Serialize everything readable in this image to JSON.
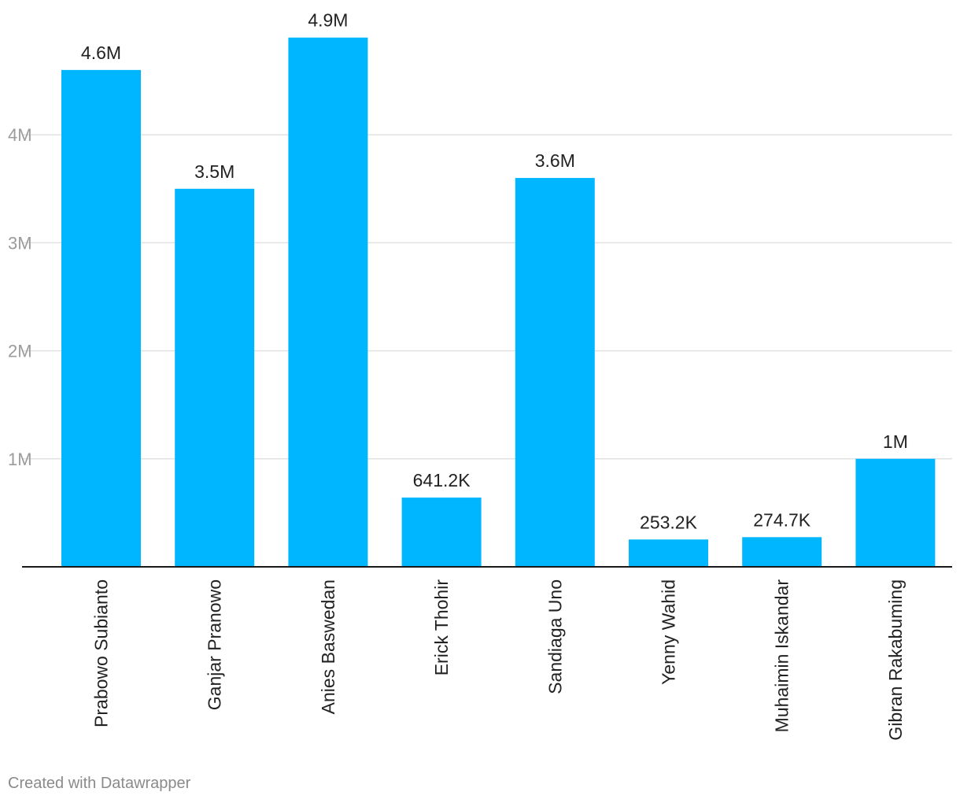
{
  "footer": {
    "credit": "Created with Datawrapper"
  },
  "colors": {
    "bar": "#00b7ff",
    "gridline": "#e2e2e2",
    "baseline": "#1a1a1a",
    "tick_label": "#9b9b9b",
    "value_label": "#222222",
    "category_label": "#222222"
  },
  "chart_data": {
    "type": "bar",
    "categories": [
      "Prabowo Subianto",
      "Ganjar Pranowo",
      "Anies Baswedan",
      "Erick Thohir",
      "Sandiaga Uno",
      "Yenny Wahid",
      "Muhaimin Iskandar",
      "Gibran Rakabuming"
    ],
    "values": [
      4600000,
      3500000,
      4900000,
      641200,
      3600000,
      253200,
      274700,
      1000000
    ],
    "value_labels": [
      "4.6M",
      "3.5M",
      "4.9M",
      "641.2K",
      "3.6M",
      "253.2K",
      "274.7K",
      "1M"
    ],
    "y_ticks": [
      1000000,
      2000000,
      3000000,
      4000000
    ],
    "y_tick_labels": [
      "1M",
      "2M",
      "3M",
      "4M"
    ],
    "ylim": [
      0,
      5000000
    ],
    "grid": true,
    "legend": "none",
    "category_label_orientation": "vertical"
  }
}
